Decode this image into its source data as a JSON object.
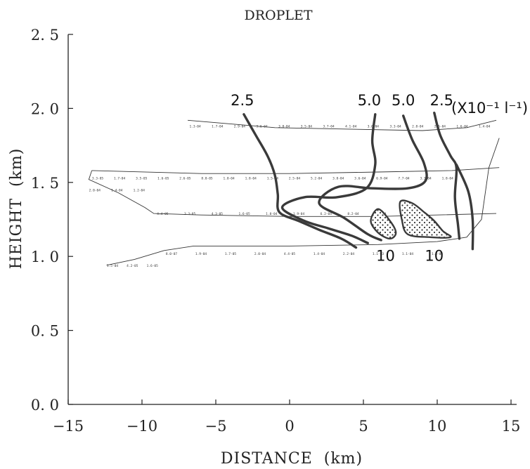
{
  "chart_data": {
    "type": "contour",
    "title": "DROPLET",
    "xlabel": "DISTANCE  (km)",
    "ylabel": "HEIGHT  (km)",
    "xlim": [
      -15,
      15
    ],
    "ylim": [
      0.0,
      2.5
    ],
    "xticks": [
      -15,
      -10,
      -5,
      0,
      5,
      10,
      15
    ],
    "xtick_labels": [
      "−15",
      "−10",
      "−5",
      "0",
      "5",
      "10",
      "15"
    ],
    "yticks": [
      0.0,
      0.5,
      1.0,
      1.5,
      2.0,
      2.5
    ],
    "ytick_labels": [
      "0. 0",
      "0. 5",
      "1. 0",
      "1. 5",
      "2. 0",
      "2. 5"
    ],
    "unit_label": "(X10⁻¹ l⁻¹)",
    "flight_tracks": [
      {
        "points": [
          [
            -6.9,
            1.92
          ],
          [
            -1,
            1.87
          ],
          [
            4,
            1.86
          ],
          [
            9,
            1.85
          ],
          [
            12,
            1.87
          ],
          [
            14,
            1.92
          ]
        ]
      },
      {
        "points": [
          [
            -13.4,
            1.58
          ],
          [
            -6,
            1.56
          ],
          [
            0,
            1.56
          ],
          [
            6,
            1.57
          ],
          [
            11,
            1.58
          ],
          [
            14.2,
            1.6
          ]
        ]
      },
      {
        "points": [
          [
            -13.4,
            1.58
          ],
          [
            -13.6,
            1.52
          ],
          [
            -11.6,
            1.43
          ],
          [
            -9.8,
            1.33
          ],
          [
            -9.2,
            1.29
          ],
          [
            -6,
            1.28
          ],
          [
            0,
            1.27
          ],
          [
            6,
            1.27
          ],
          [
            14,
            1.29
          ]
        ]
      },
      {
        "points": [
          [
            -12.4,
            0.94
          ],
          [
            -10.5,
            0.98
          ],
          [
            -8.5,
            1.04
          ],
          [
            -6.5,
            1.07
          ],
          [
            0,
            1.07
          ],
          [
            6,
            1.08
          ],
          [
            10,
            1.1
          ],
          [
            12,
            1.13
          ],
          [
            13,
            1.25
          ],
          [
            13.5,
            1.6
          ],
          [
            14.2,
            1.8
          ]
        ]
      }
    ],
    "contour_labels": [
      {
        "text": "2.5",
        "x": -3.2,
        "y": 2.02
      },
      {
        "text": "5.0",
        "x": 5.4,
        "y": 2.02
      },
      {
        "text": "5.0",
        "x": 7.7,
        "y": 2.02
      },
      {
        "text": "2.5",
        "x": 10.3,
        "y": 2.02
      },
      {
        "text": "10",
        "x": 6.5,
        "y": 0.97
      },
      {
        "text": "10",
        "x": 9.8,
        "y": 0.97
      }
    ],
    "contours": [
      {
        "level": 2.5,
        "points": [
          [
            -3.1,
            1.96
          ],
          [
            -2.3,
            1.82
          ],
          [
            -1.5,
            1.68
          ],
          [
            -1.0,
            1.55
          ],
          [
            -0.8,
            1.42
          ],
          [
            -0.7,
            1.3
          ],
          [
            0.6,
            1.24
          ],
          [
            2.0,
            1.18
          ],
          [
            3.5,
            1.12
          ],
          [
            4.5,
            1.06
          ]
        ]
      },
      {
        "level": 5.0,
        "points": [
          [
            5.8,
            1.96
          ],
          [
            5.6,
            1.78
          ],
          [
            5.8,
            1.62
          ],
          [
            5.2,
            1.46
          ],
          [
            3.2,
            1.4
          ],
          [
            1.0,
            1.4
          ],
          [
            -0.5,
            1.33
          ],
          [
            1.0,
            1.24
          ],
          [
            2.6,
            1.19
          ],
          [
            4.2,
            1.14
          ],
          [
            5.3,
            1.09
          ]
        ]
      },
      {
        "level": 5.0,
        "points": [
          [
            7.7,
            1.95
          ],
          [
            8.3,
            1.79
          ],
          [
            9.1,
            1.63
          ],
          [
            9.2,
            1.51
          ],
          [
            8.0,
            1.46
          ],
          [
            5.6,
            1.46
          ],
          [
            3.3,
            1.47
          ],
          [
            2.0,
            1.36
          ],
          [
            3.7,
            1.26
          ],
          [
            5.3,
            1.15
          ],
          [
            6.2,
            1.11
          ]
        ]
      },
      {
        "level": 2.5,
        "points": [
          [
            9.8,
            1.97
          ],
          [
            10.2,
            1.82
          ],
          [
            10.9,
            1.68
          ],
          [
            11.3,
            1.6
          ],
          [
            11.2,
            1.4
          ],
          [
            11.4,
            1.22
          ],
          [
            11.5,
            1.12
          ]
        ]
      },
      {
        "level": 2.5,
        "points": [
          [
            11.3,
            1.62
          ],
          [
            12.1,
            1.44
          ],
          [
            12.4,
            1.25
          ],
          [
            12.4,
            1.05
          ]
        ]
      }
    ],
    "shaded_regions": [
      {
        "points": [
          [
            6.0,
            1.32
          ],
          [
            5.5,
            1.24
          ],
          [
            6.0,
            1.16
          ],
          [
            6.8,
            1.12
          ],
          [
            7.2,
            1.16
          ],
          [
            6.8,
            1.24
          ]
        ]
      },
      {
        "points": [
          [
            7.5,
            1.37
          ],
          [
            8.3,
            1.36
          ],
          [
            9.1,
            1.3
          ],
          [
            9.8,
            1.24
          ],
          [
            10.4,
            1.17
          ],
          [
            10.9,
            1.13
          ],
          [
            9.5,
            1.13
          ],
          [
            8.0,
            1.15
          ],
          [
            7.6,
            1.25
          ]
        ]
      }
    ],
    "point_label_rows": [
      {
        "y": 1.88,
        "x_start": -6.4,
        "x_end": 13.2,
        "labels": [
          "1.3-04",
          "1.7-04",
          "2.9-04",
          "3.6-04",
          "3.8-04",
          "3.5-04",
          "3.7-04",
          "4.1-04",
          "3.6-04",
          "3.3-04",
          "2.8-04",
          "2.5-04",
          "1.6-04",
          "1.4-04"
        ]
      },
      {
        "y": 1.53,
        "x_start": -13.0,
        "x_end": 10.7,
        "labels": [
          "3.3-05",
          "1.7-04",
          "3.5-05",
          "1.6-05",
          "2.6-05",
          "8.0-05",
          "1.0-04",
          "1.8-04",
          "1.5-04",
          "2.5-04",
          "5.2-04",
          "3.8-04",
          "3.6-04",
          "6.9-04",
          "7.7-04",
          "3.3-04",
          "1.8-04"
        ]
      },
      {
        "y": 1.45,
        "x_start": -13.2,
        "x_end": -10.2,
        "labels": [
          "2.0-04",
          "1.4-04",
          "1.2-04"
        ]
      },
      {
        "y": 1.29,
        "x_start": -8.6,
        "x_end": 8.0,
        "labels": [
          "4.4-05",
          "3.3-05",
          "4.3-05",
          "1.6-05",
          "1.0-04",
          "1.9-04",
          "6.2-04",
          "8.2-04",
          "2.5-04",
          "3.9-04"
        ]
      },
      {
        "y": 1.02,
        "x_start": -8.0,
        "x_end": 10.0,
        "labels": [
          "8.0-07",
          "1.9-04",
          "1.7-05",
          "2.0-04",
          "4.4-05",
          "1.4-04",
          "2.2-04",
          "1.1-03",
          "1.1-04",
          "1.3-03"
        ]
      },
      {
        "y": 0.94,
        "x_start": -12.0,
        "x_end": -9.3,
        "labels": [
          "1.5-04",
          "4.2-05",
          "1.6-05"
        ]
      }
    ]
  }
}
